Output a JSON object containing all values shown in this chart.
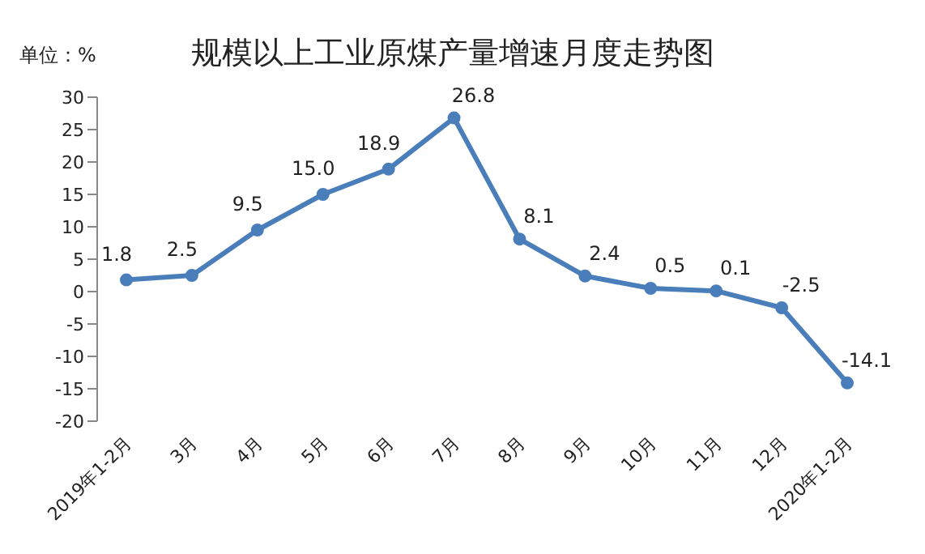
{
  "chart_data": {
    "type": "line",
    "title": "规模以上工业原煤产量增速月度走势图",
    "annotations": [
      "单位：%"
    ],
    "categories": [
      "2019年1-2月",
      "3月",
      "4月",
      "5月",
      "6月",
      "7月",
      "8月",
      "9月",
      "10月",
      "11月",
      "12月",
      "2020年1-2月"
    ],
    "series": [
      {
        "color": "#4a7ebb",
        "values": [
          1.8,
          2.5,
          9.5,
          15.0,
          18.9,
          26.8,
          8.1,
          2.4,
          0.5,
          0.1,
          -2.5,
          -14.1
        ],
        "value_labels": [
          "1.8",
          "2.5",
          "9.5",
          "15.0",
          "18.9",
          "26.8",
          "8.1",
          "2.4",
          "0.5",
          "0.1",
          "-2.5",
          "-14.1"
        ]
      }
    ],
    "ylim": [
      -20,
      30
    ],
    "yticks": [
      -20,
      -15,
      -10,
      -5,
      0,
      5,
      10,
      15,
      20,
      25,
      30
    ],
    "grid": false,
    "legend": false,
    "marker": "circle",
    "line_style": "solid"
  }
}
